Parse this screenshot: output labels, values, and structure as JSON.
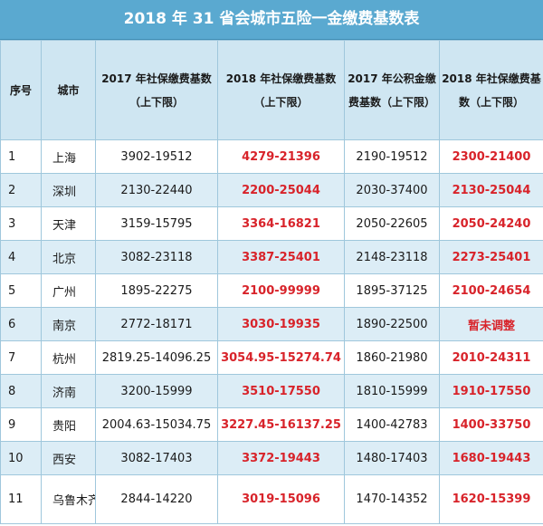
{
  "title": "2018 年 31 省会城市五险一金缴费基数表",
  "headers": {
    "idx": "序号",
    "city": "城市",
    "c2017": "2017 年社保缴费基数（上下限）",
    "c2018": "2018 年社保缴费基数（上下限）",
    "fund2017": "2017 年公积金缴费基数（上下限）",
    "c2018b": "2018 年社保缴费基数（上下限）"
  },
  "rows": [
    {
      "idx": "1",
      "city": "上海",
      "a": "3902-19512",
      "b": "4279-21396",
      "c": "2190-19512",
      "d": "2300-21400"
    },
    {
      "idx": "2",
      "city": "深圳",
      "a": "2130-22440",
      "b": "2200-25044",
      "c": "2030-37400",
      "d": "2130-25044"
    },
    {
      "idx": "3",
      "city": "天津",
      "a": "3159-15795",
      "b": "3364-16821",
      "c": "2050-22605",
      "d": "2050-24240"
    },
    {
      "idx": "4",
      "city": "北京",
      "a": "3082-23118",
      "b": "3387-25401",
      "c": "2148-23118",
      "d": "2273-25401"
    },
    {
      "idx": "5",
      "city": "广州",
      "a": "1895-22275",
      "b": "2100-99999",
      "c": "1895-37125",
      "d": "2100-24654"
    },
    {
      "idx": "6",
      "city": "南京",
      "a": "2772-18171",
      "b": "3030-19935",
      "c": "1890-22500",
      "d": "暂未调整"
    },
    {
      "idx": "7",
      "city": "杭州",
      "a": "2819.25-14096.25",
      "b": "3054.95-15274.74",
      "c": "1860-21980",
      "d": "2010-24311"
    },
    {
      "idx": "8",
      "city": "济南",
      "a": "3200-15999",
      "b": "3510-17550",
      "c": "1810-15999",
      "d": "1910-17550"
    },
    {
      "idx": "9",
      "city": "贵阳",
      "a": "2004.63-15034.75",
      "b": "3227.45-16137.25",
      "c": "1400-42783",
      "d": "1400-33750"
    },
    {
      "idx": "10",
      "city": "西安",
      "a": "3082-17403",
      "b": "3372-19443",
      "c": "1480-17403",
      "d": "1680-19443"
    },
    {
      "idx": "11",
      "city": "乌鲁木齐",
      "a": "2844-14220",
      "b": "3019-15096",
      "c": "1470-14352",
      "d": "1620-15399"
    }
  ],
  "colors": {
    "header_bg": "#5aa9d0",
    "accent_red": "#d8232a",
    "stripe": "#dcedf6"
  }
}
